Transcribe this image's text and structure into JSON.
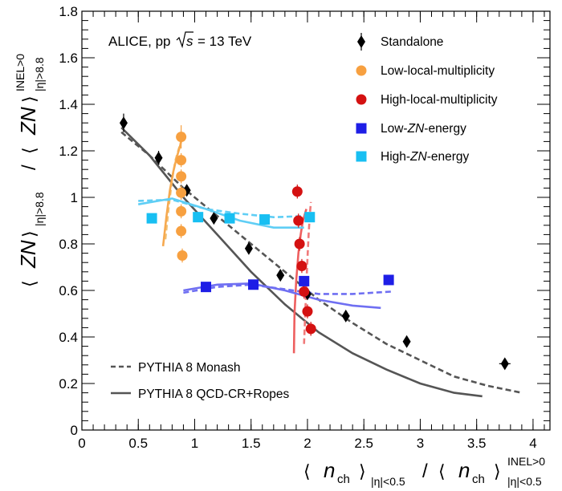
{
  "chart_data": {
    "type": "scatter",
    "annotation": "ALICE, pp",
    "energy_label": "s",
    "energy_value": "= 13 TeV",
    "xlabel": {
      "open": "⟨",
      "num_sym": "n",
      "num_sub": "ch",
      "num_close": "⟩",
      "num_range": "|η|<0.5",
      "slash": "/",
      "den_open": "⟨",
      "den_sym": "n",
      "den_sub": "ch",
      "den_close": "⟩",
      "den_sup": "INEL>0",
      "den_range": "|η|<0.5"
    },
    "ylabel": {
      "open": "⟨",
      "num_sym": "ZN",
      "num_close": "⟩",
      "num_range": "|η|>8.8",
      "slash": "/",
      "den_open": "⟨",
      "den_sym": "ZN",
      "den_close": "⟩",
      "den_sup": "INEL>0",
      "den_range": "|η|>8.8"
    },
    "xlim": [
      0,
      4.15
    ],
    "ylim": [
      0,
      1.8
    ],
    "xticks": [
      0,
      0.5,
      1,
      1.5,
      2,
      2.5,
      3,
      3.5,
      4
    ],
    "xtick_labels": [
      "0",
      "0.5",
      "1",
      "1.5",
      "2",
      "2.5",
      "3",
      "3.5",
      "4"
    ],
    "yticks": [
      0,
      0.2,
      0.4,
      0.6,
      0.8,
      1,
      1.2,
      1.4,
      1.6,
      1.8
    ],
    "ytick_labels": [
      "0",
      "0.2",
      "0.4",
      "0.6",
      "0.8",
      "1",
      "1.2",
      "1.4",
      "1.6",
      "1.8"
    ],
    "series": [
      {
        "name": "Standalone",
        "marker": "diamond",
        "color": "#000000",
        "points": [
          {
            "x": 0.37,
            "y": 1.32,
            "ey": 0.04,
            "ex": 0.02
          },
          {
            "x": 0.68,
            "y": 1.17,
            "ey": 0.03,
            "ex": 0.02
          },
          {
            "x": 0.93,
            "y": 1.03,
            "ey": 0.02,
            "ex": 0.02
          },
          {
            "x": 1.17,
            "y": 0.91,
            "ey": 0.02,
            "ex": 0.02
          },
          {
            "x": 1.48,
            "y": 0.78,
            "ey": 0.02,
            "ex": 0.02
          },
          {
            "x": 1.76,
            "y": 0.665,
            "ey": 0.02,
            "ex": 0.02
          },
          {
            "x": 2.0,
            "y": 0.585,
            "ey": 0.02,
            "ex": 0.02
          },
          {
            "x": 2.34,
            "y": 0.49,
            "ey": 0.02,
            "ex": 0.03
          },
          {
            "x": 2.88,
            "y": 0.38,
            "ey": 0.02,
            "ex": 0.03
          },
          {
            "x": 3.75,
            "y": 0.285,
            "ey": 0.02,
            "ex": 0.05
          }
        ]
      },
      {
        "name": "Low-local-multiplicity",
        "marker": "circle",
        "color": "#f7a040",
        "points": [
          {
            "x": 0.88,
            "y": 1.26,
            "ey": 0.05
          },
          {
            "x": 0.88,
            "y": 1.16,
            "ey": 0.03
          },
          {
            "x": 0.88,
            "y": 1.09,
            "ey": 0.03
          },
          {
            "x": 0.88,
            "y": 1.02,
            "ey": 0.03
          },
          {
            "x": 0.88,
            "y": 0.94,
            "ey": 0.03
          },
          {
            "x": 0.88,
            "y": 0.855,
            "ey": 0.03
          },
          {
            "x": 0.89,
            "y": 0.75,
            "ey": 0.03
          }
        ]
      },
      {
        "name": "High-local-multiplicity",
        "marker": "circle",
        "color": "#d41111",
        "points": [
          {
            "x": 1.91,
            "y": 1.025,
            "ey": 0.03
          },
          {
            "x": 1.92,
            "y": 0.9,
            "ey": 0.03
          },
          {
            "x": 1.93,
            "y": 0.8,
            "ey": 0.03
          },
          {
            "x": 1.95,
            "y": 0.705,
            "ey": 0.03
          },
          {
            "x": 1.97,
            "y": 0.595,
            "ey": 0.03
          },
          {
            "x": 2.0,
            "y": 0.51,
            "ey": 0.03
          },
          {
            "x": 2.03,
            "y": 0.435,
            "ey": 0.03
          }
        ]
      },
      {
        "name": "Low-ZN-energy",
        "name_pre": "Low-",
        "name_ital": "ZN",
        "name_post": "-energy",
        "marker": "square",
        "color": "#1e1ee6",
        "points": [
          {
            "x": 1.1,
            "y": 0.615,
            "ey": 0.015,
            "ex": 0.03
          },
          {
            "x": 1.52,
            "y": 0.625,
            "ey": 0.015,
            "ex": 0.03
          },
          {
            "x": 1.97,
            "y": 0.64,
            "ey": 0.015,
            "ex": 0.03
          },
          {
            "x": 2.72,
            "y": 0.645,
            "ey": 0.015,
            "ex": 0.04
          }
        ]
      },
      {
        "name": "High-ZN-energy",
        "name_pre": "High-",
        "name_ital": "ZN",
        "name_post": "-energy",
        "marker": "square",
        "color": "#18bff2",
        "points": [
          {
            "x": 0.62,
            "y": 0.91,
            "ey": 0.015,
            "ex": 0.02
          },
          {
            "x": 1.03,
            "y": 0.915,
            "ey": 0.015,
            "ex": 0.03
          },
          {
            "x": 1.31,
            "y": 0.91,
            "ey": 0.015,
            "ex": 0.03
          },
          {
            "x": 1.62,
            "y": 0.905,
            "ey": 0.015,
            "ex": 0.03
          },
          {
            "x": 2.02,
            "y": 0.915,
            "ey": 0.015,
            "ex": 0.03
          }
        ]
      }
    ],
    "curves": [
      {
        "name": "Standalone, PYTHIA 8 Monash",
        "color": "#555555",
        "style": "dashed",
        "x": [
          0.35,
          0.6,
          0.9,
          1.2,
          1.5,
          1.8,
          2.1,
          2.4,
          2.7,
          3.0,
          3.3,
          3.6,
          3.9
        ],
        "y": [
          1.28,
          1.18,
          1.04,
          0.92,
          0.8,
          0.68,
          0.56,
          0.46,
          0.37,
          0.3,
          0.23,
          0.19,
          0.16
        ]
      },
      {
        "name": "Standalone, PYTHIA 8 QCD-CR+Ropes",
        "color": "#555555",
        "style": "solid",
        "x": [
          0.35,
          0.6,
          0.9,
          1.2,
          1.5,
          1.8,
          2.1,
          2.4,
          2.7,
          3.0,
          3.3,
          3.55
        ],
        "y": [
          1.3,
          1.18,
          1.0,
          0.84,
          0.68,
          0.54,
          0.42,
          0.33,
          0.26,
          0.2,
          0.16,
          0.145
        ]
      },
      {
        "name": "Low-local-multiplicity, PYTHIA 8 Monash",
        "color": "#f2c275",
        "style": "dashed",
        "x": [
          0.74,
          0.77,
          0.8,
          0.83,
          0.86,
          0.88
        ],
        "y": [
          0.82,
          0.96,
          1.08,
          1.16,
          1.21,
          1.24
        ]
      },
      {
        "name": "Low-local-multiplicity, PYTHIA 8 QCD-CR+Ropes",
        "color": "#f6a94f",
        "style": "solid",
        "x": [
          0.72,
          0.75,
          0.78,
          0.81,
          0.84,
          0.87,
          0.9
        ],
        "y": [
          0.79,
          0.92,
          1.03,
          1.11,
          1.17,
          1.22,
          1.28
        ]
      },
      {
        "name": "High-local-multiplicity, PYTHIA 8 Monash",
        "color": "#f07a7a",
        "style": "dashed",
        "x": [
          1.97,
          1.98,
          1.99,
          2.0,
          2.01,
          2.02,
          2.03
        ],
        "y": [
          0.37,
          0.5,
          0.63,
          0.74,
          0.84,
          0.92,
          0.98
        ]
      },
      {
        "name": "High-local-multiplicity, PYTHIA 8 QCD-CR+Ropes",
        "color": "#ee5f5f",
        "style": "solid",
        "x": [
          1.88,
          1.885,
          1.9,
          1.92,
          1.94,
          1.96,
          1.99
        ],
        "y": [
          0.33,
          0.5,
          0.64,
          0.76,
          0.84,
          0.9,
          0.95
        ]
      },
      {
        "name": "Low-ZN-energy, PYTHIA 8 Monash",
        "color": "#6f6ff2",
        "style": "dashed",
        "x": [
          0.9,
          1.2,
          1.5,
          1.8,
          2.1,
          2.4,
          2.74
        ],
        "y": [
          0.59,
          0.615,
          0.625,
          0.605,
          0.585,
          0.585,
          0.595
        ]
      },
      {
        "name": "Low-ZN-energy, PYTHIA 8 QCD-CR+Ropes",
        "color": "#6f6ff2",
        "style": "solid",
        "x": [
          0.9,
          1.2,
          1.5,
          1.8,
          2.1,
          2.4,
          2.65
        ],
        "y": [
          0.6,
          0.625,
          0.63,
          0.6,
          0.56,
          0.535,
          0.525
        ]
      },
      {
        "name": "High-ZN-energy, PYTHIA 8 Monash",
        "color": "#5fcef5",
        "style": "dashed",
        "x": [
          0.5,
          0.8,
          1.1,
          1.4,
          1.7,
          2.0
        ],
        "y": [
          0.985,
          0.99,
          0.95,
          0.93,
          0.915,
          0.92
        ]
      },
      {
        "name": "High-ZN-energy, PYTHIA 8 QCD-CR+Ropes",
        "color": "#5fcef5",
        "style": "solid",
        "x": [
          0.5,
          0.8,
          1.1,
          1.4,
          1.7,
          1.97
        ],
        "y": [
          0.97,
          0.995,
          0.95,
          0.9,
          0.87,
          0.87
        ]
      }
    ],
    "legend_points": {
      "position": "top-right",
      "entries": [
        {
          "label": "Standalone",
          "marker": "diamond",
          "color": "#000000"
        },
        {
          "label_pre": "Low-local-multiplicity",
          "marker": "circle",
          "color": "#f7a040"
        },
        {
          "label_pre": "High-local-multiplicity",
          "marker": "circle",
          "color": "#d41111"
        },
        {
          "label_pre": "Low-",
          "label_ital": "ZN",
          "label_post": "-energy",
          "marker": "square",
          "color": "#1e1ee6"
        },
        {
          "label_pre": "High-",
          "label_ital": "ZN",
          "label_post": "-energy",
          "marker": "square",
          "color": "#18bff2"
        }
      ]
    },
    "legend_models": {
      "position": "bottom-left",
      "entries": [
        {
          "label": "PYTHIA 8 Monash",
          "style": "dashed",
          "color": "#555555"
        },
        {
          "label": "PYTHIA 8 QCD-CR+Ropes",
          "style": "solid",
          "color": "#555555"
        }
      ]
    }
  }
}
